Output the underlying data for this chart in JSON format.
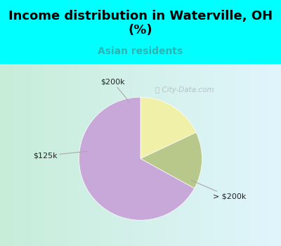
{
  "title": "Income distribution in Waterville, OH\n(%)",
  "subtitle": "Asian residents",
  "title_color": "#000000",
  "subtitle_color": "#2ab5b5",
  "header_bg_color": "#00ffff",
  "slices": [
    {
      "label": "$200k",
      "value": 18,
      "color": "#f0f0a8"
    },
    {
      "label": "$125k",
      "value": 15,
      "color": "#b8c88a"
    },
    {
      "label": "> $200k",
      "value": 67,
      "color": "#c8a8d8"
    }
  ],
  "startangle": 90,
  "figsize": [
    4.0,
    3.5
  ],
  "dpi": 100,
  "label_positions": {
    "$200k": [
      -0.45,
      1.25
    ],
    "$125k": [
      -1.55,
      0.05
    ],
    "> $200k": [
      1.45,
      -0.62
    ]
  },
  "arrow_targets": {
    "$200k": [
      -0.18,
      0.92
    ],
    "$125k": [
      -0.85,
      0.12
    ],
    "> $200k": [
      0.82,
      -0.35
    ]
  }
}
